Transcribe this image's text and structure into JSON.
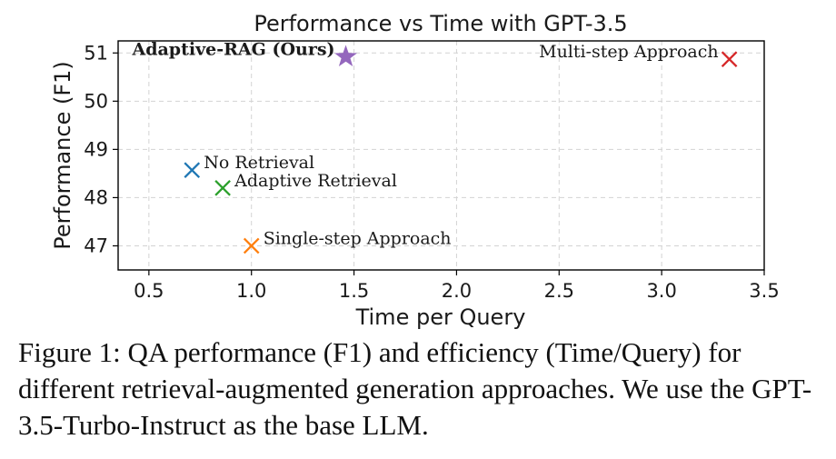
{
  "chart_data": {
    "type": "scatter",
    "title": "Performance vs Time with GPT-3.5",
    "xlabel": "Time per Query",
    "ylabel": "Performance (F1)",
    "xlim": [
      0.35,
      3.5
    ],
    "ylim": [
      46.5,
      51.25
    ],
    "xticks": [
      0.5,
      1.0,
      1.5,
      2.0,
      2.5,
      3.0,
      3.5
    ],
    "xtick_labels": [
      "0.5",
      "1.0",
      "1.5",
      "2.0",
      "2.5",
      "3.0",
      "3.5"
    ],
    "yticks": [
      47,
      48,
      49,
      50,
      51
    ],
    "ytick_labels": [
      "47",
      "48",
      "49",
      "50",
      "51"
    ],
    "grid": true,
    "points": [
      {
        "name": "No Retrieval",
        "x": 0.71,
        "y": 48.57,
        "marker": "x",
        "color": "#1f77b4",
        "bold": false,
        "label_side": "right"
      },
      {
        "name": "Adaptive Retrieval",
        "x": 0.86,
        "y": 48.2,
        "marker": "x",
        "color": "#2ca02c",
        "bold": false,
        "label_side": "right"
      },
      {
        "name": "Single-step Approach",
        "x": 1.0,
        "y": 47.0,
        "marker": "x",
        "color": "#ff7f0e",
        "bold": false,
        "label_side": "right"
      },
      {
        "name": "Adaptive-RAG (Ours)",
        "x": 1.46,
        "y": 50.92,
        "marker": "star",
        "color": "#9467bd",
        "bold": true,
        "label_side": "left"
      },
      {
        "name": "Multi-step Approach",
        "x": 3.33,
        "y": 50.87,
        "marker": "x",
        "color": "#d62728",
        "bold": false,
        "label_side": "left"
      }
    ]
  },
  "caption": "Figure 1: QA performance (F1) and efficiency (Time/Query) for different retrieval-augmented generation approaches. We use the GPT-3.5-Turbo-Instruct as the base LLM."
}
